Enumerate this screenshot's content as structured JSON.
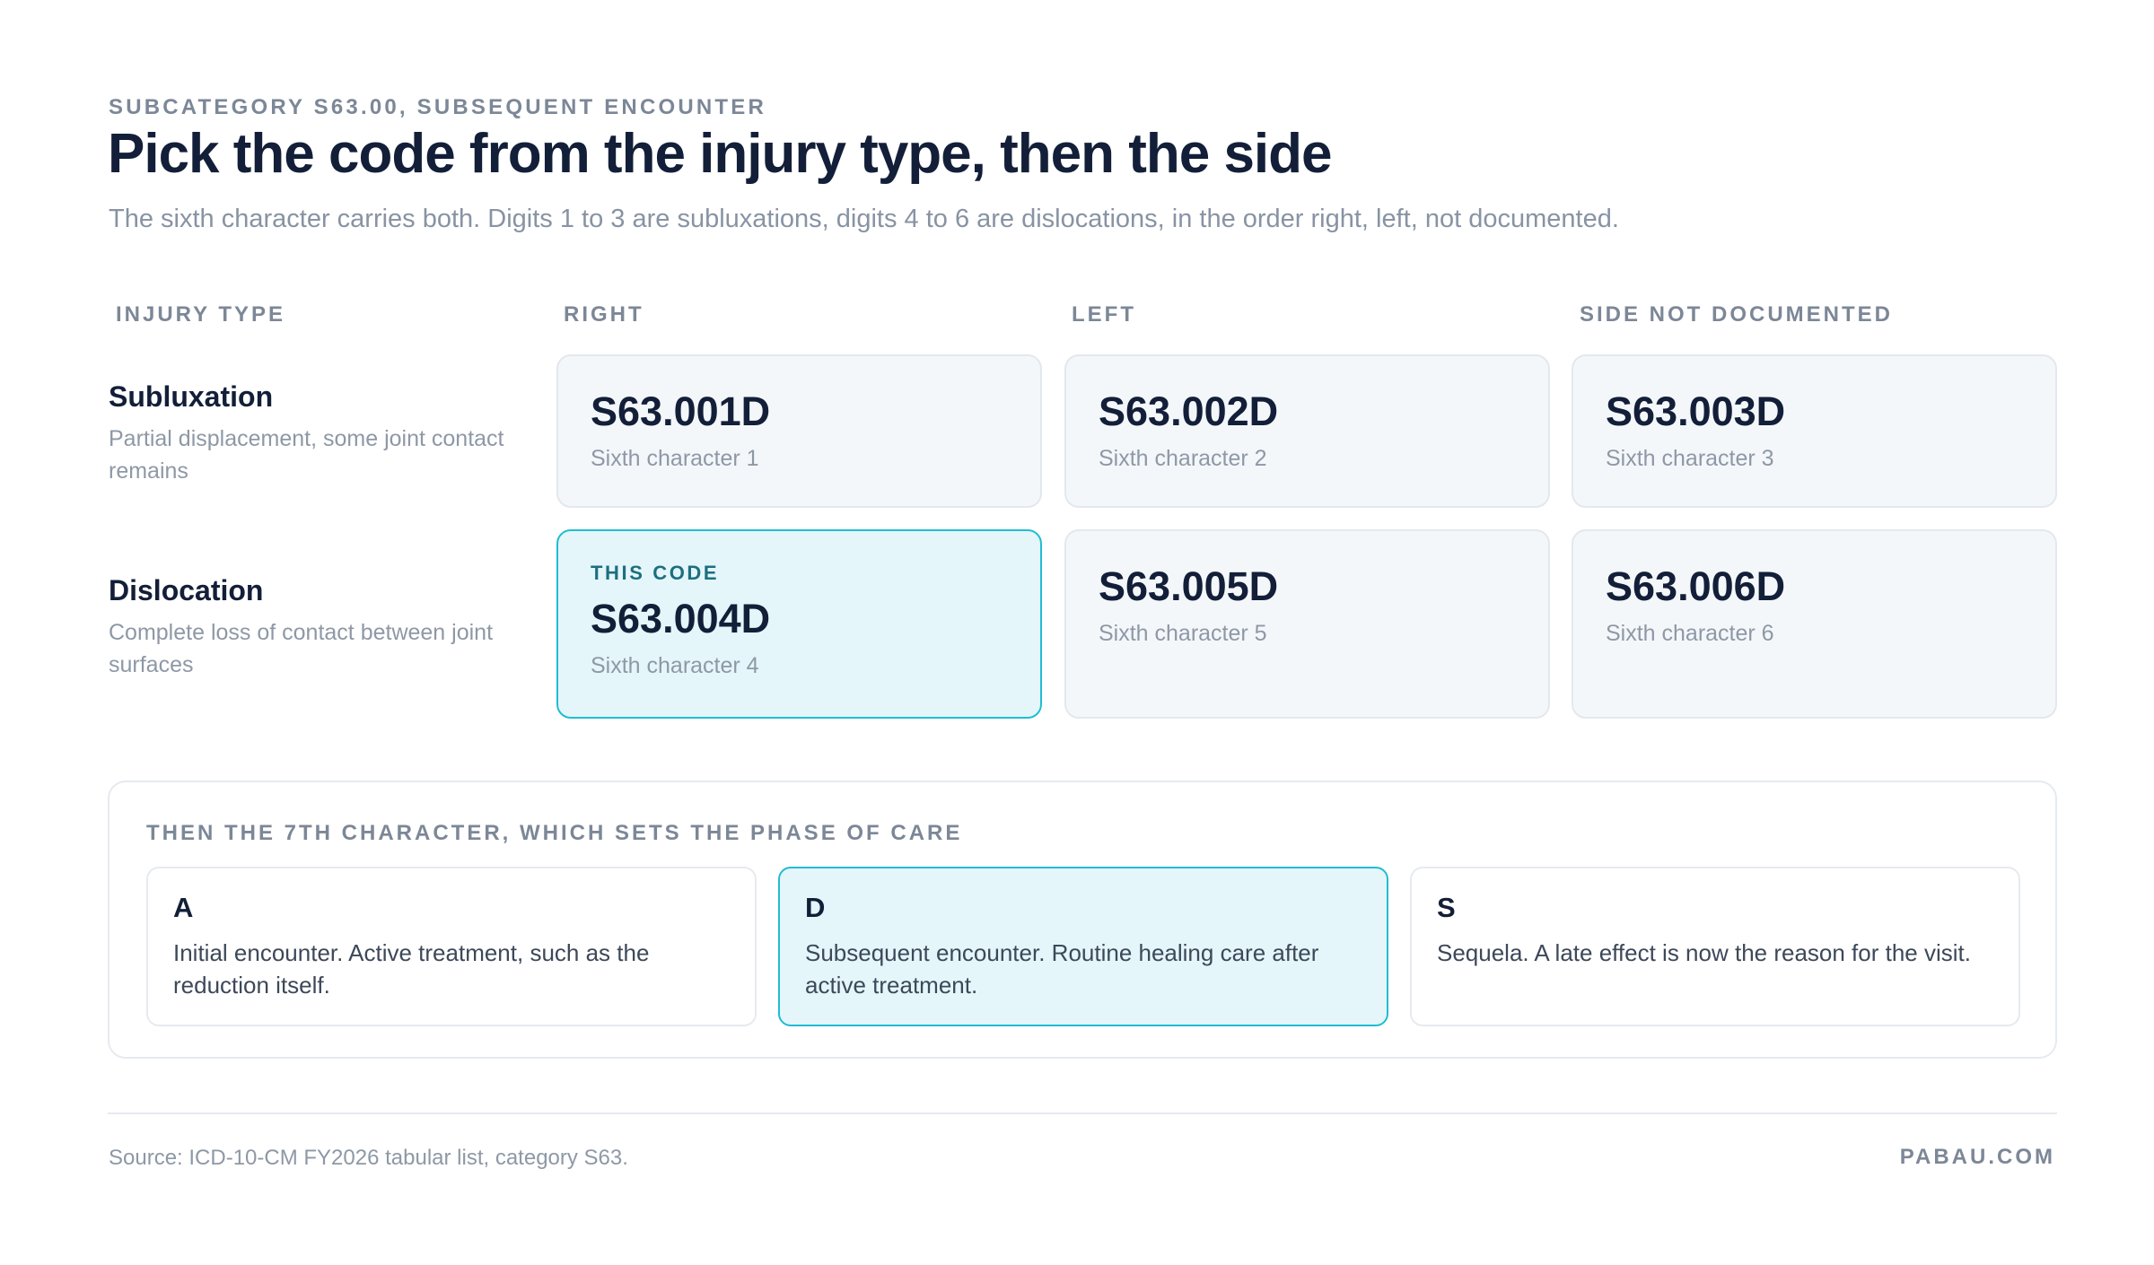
{
  "header": {
    "eyebrow": "SUBCATEGORY S63.00, SUBSEQUENT ENCOUNTER",
    "title": "Pick the code from the injury type, then the side",
    "subtitle": "The sixth character carries both. Digits 1 to 3 are subluxations, digits 4 to 6 are dislocations, in the order right, left, not documented."
  },
  "table": {
    "columns": [
      "INJURY TYPE",
      "RIGHT",
      "LEFT",
      "SIDE NOT DOCUMENTED"
    ],
    "rows": [
      {
        "label": "Subluxation",
        "description": "Partial displacement, some joint contact remains",
        "cells": [
          {
            "code": "S63.001D",
            "sub": "Sixth character 1"
          },
          {
            "code": "S63.002D",
            "sub": "Sixth character 2"
          },
          {
            "code": "S63.003D",
            "sub": "Sixth character 3"
          }
        ]
      },
      {
        "label": "Dislocation",
        "description": "Complete loss of contact between joint surfaces",
        "cells": [
          {
            "tag": "THIS CODE",
            "code": "S63.004D",
            "sub": "Sixth character 4"
          },
          {
            "code": "S63.005D",
            "sub": "Sixth character 5"
          },
          {
            "code": "S63.006D",
            "sub": "Sixth character 6"
          }
        ]
      }
    ]
  },
  "phase": {
    "heading": "THEN THE 7TH CHARACTER, WHICH SETS THE PHASE OF CARE",
    "options": [
      {
        "letter": "A",
        "description": "Initial encounter. Active treatment, such as the reduction itself."
      },
      {
        "letter": "D",
        "description": "Subsequent encounter. Routine healing care after active treatment."
      },
      {
        "letter": "S",
        "description": "Sequela. A late effect is now the reason for the visit."
      }
    ]
  },
  "footer": {
    "source": "Source: ICD-10-CM FY2026 tabular list, category S63.",
    "brand": "PABAU.COM"
  },
  "colors": {
    "accent": "#22bcd3",
    "highlight_bg": "#e4f6fa",
    "card_bg": "#f4f7fa",
    "title": "#131f38"
  }
}
